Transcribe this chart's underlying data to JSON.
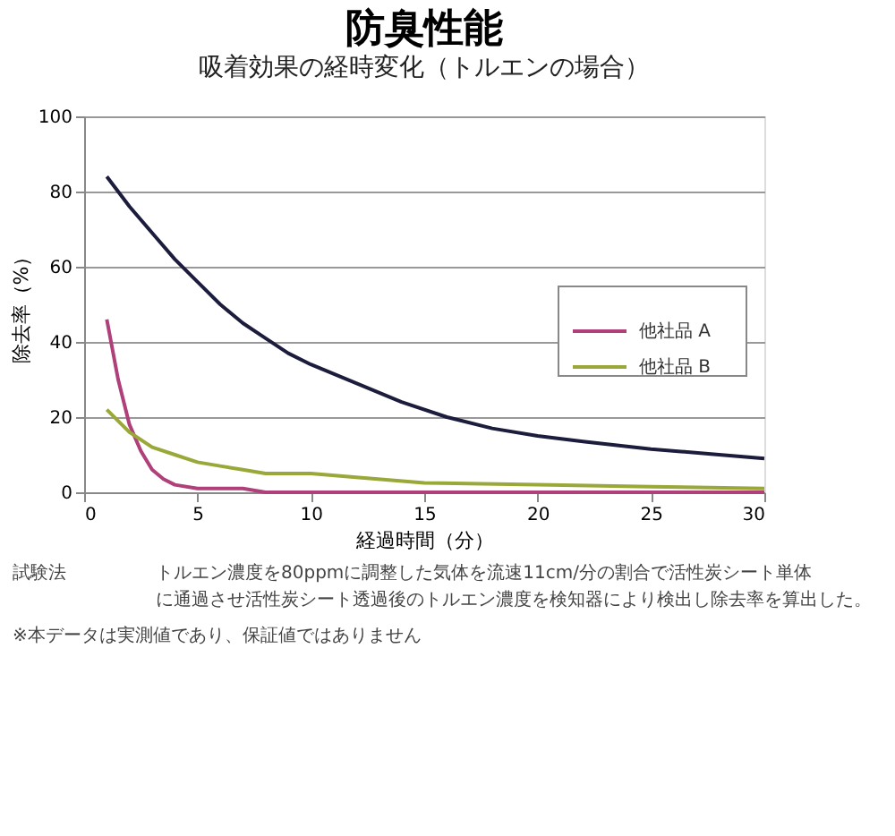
{
  "chart_data": {
    "type": "line",
    "title": "防臭性能",
    "subtitle": "吸着効果の経時変化（トルエンの場合）",
    "xlabel": "経過時間（分）",
    "ylabel": "除去率（%）",
    "xlim": [
      0,
      30
    ],
    "xticks": [
      0,
      5,
      10,
      15,
      20,
      25,
      30
    ],
    "ylim": [
      0,
      100
    ],
    "yticks": [
      0,
      20,
      40,
      60,
      80,
      100
    ],
    "grid": "y",
    "legend": "right",
    "marker": "none",
    "line_style": "solid",
    "series": [
      {
        "color": "#1c1c3c",
        "x": [
          1,
          2,
          3,
          4,
          5,
          6,
          7,
          8,
          9,
          10,
          12,
          14,
          16,
          18,
          20,
          22,
          25,
          28,
          30
        ],
        "values": [
          84,
          76,
          69,
          62,
          56,
          50,
          45,
          41,
          37,
          34,
          29,
          24,
          20,
          17,
          15,
          13.5,
          11.5,
          10,
          9
        ]
      },
      {
        "name": "他社品 A",
        "color": "#b0407a",
        "x": [
          1,
          1.5,
          2,
          2.5,
          3,
          3.5,
          4,
          5,
          7,
          8,
          30
        ],
        "values": [
          46,
          30,
          18,
          11,
          6,
          3.5,
          2,
          1,
          1,
          0,
          0
        ]
      },
      {
        "name": "他社品 B",
        "color": "#9aa83a",
        "x": [
          1,
          2,
          3,
          4,
          5,
          6,
          7,
          8,
          10,
          12,
          15,
          20,
          25,
          30
        ],
        "values": [
          22,
          16,
          12,
          10,
          8,
          7,
          6,
          5,
          5,
          4,
          2.5,
          2,
          1.5,
          1
        ]
      }
    ],
    "annotations": [
      "試験法",
      "トルエン濃度を80ppmに調整した気体を流速11cm/分の割合で活性炭シート単体に通過させ活性炭シート透過後のトルエン濃度を検知器により検出し除去率を算出した。",
      "※本データは実測値であり、保証値ではありません"
    ]
  }
}
